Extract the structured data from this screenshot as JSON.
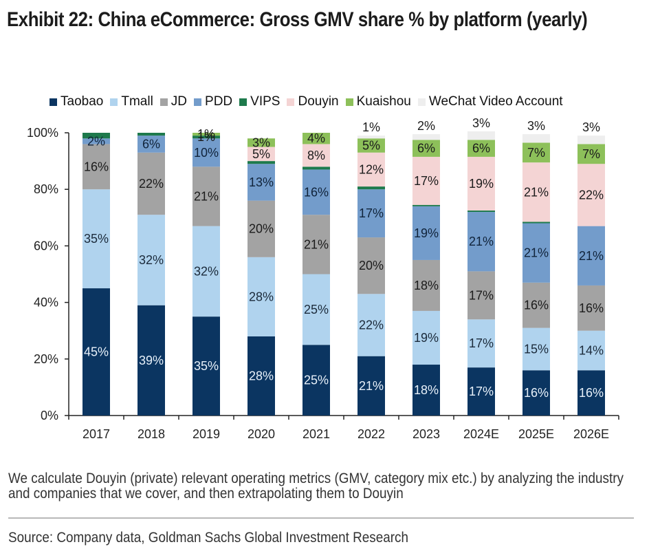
{
  "title": "Exhibit 22: China eCommerce: Gross GMV share % by platform (yearly)",
  "note": "We calculate Douyin (private) relevant operating metrics (GMV, category mix etc.) by analyzing the industry and companies that we cover, and then extrapolating them to Douyin",
  "source": "Source: Company data, Goldman Sachs Global Investment Research",
  "chart_data": {
    "type": "bar",
    "stacked": true,
    "title": "Exhibit 22: China eCommerce: Gross GMV share % by platform (yearly)",
    "xlabel": "",
    "ylabel": "",
    "ylim": [
      0,
      100
    ],
    "y_ticks": [
      "0%",
      "20%",
      "40%",
      "60%",
      "80%",
      "100%"
    ],
    "y_tick_values": [
      0,
      20,
      40,
      60,
      80,
      100
    ],
    "grid": false,
    "legend_position": "top",
    "categories": [
      "2017",
      "2018",
      "2019",
      "2020",
      "2021",
      "2022",
      "2023",
      "2024E",
      "2025E",
      "2026E"
    ],
    "series": [
      {
        "name": "Taobao",
        "color": "#0b3561",
        "label_color": "#e8f1fa",
        "values": [
          45,
          39,
          35,
          28,
          25,
          21,
          18,
          17,
          16,
          16
        ],
        "labels": [
          "45%",
          "39%",
          "35%",
          "28%",
          "25%",
          "21%",
          "18%",
          "17%",
          "16%",
          "16%"
        ]
      },
      {
        "name": "Tmall",
        "color": "#b0d3ee",
        "label_color": "#1b2a3a",
        "values": [
          35,
          32,
          32,
          28,
          25,
          22,
          19,
          17,
          15,
          14
        ],
        "labels": [
          "35%",
          "32%",
          "32%",
          "28%",
          "25%",
          "22%",
          "19%",
          "17%",
          "15%",
          "14%"
        ]
      },
      {
        "name": "JD",
        "color": "#a3a3a3",
        "label_color": "#1b1b1b",
        "values": [
          16,
          22,
          21,
          20,
          21,
          20,
          18,
          17,
          16,
          16
        ],
        "labels": [
          "16%",
          "22%",
          "21%",
          "20%",
          "21%",
          "20%",
          "18%",
          "17%",
          "16%",
          "16%"
        ]
      },
      {
        "name": "PDD",
        "color": "#739ccb",
        "label_color": "#10233a",
        "values": [
          2,
          6,
          10,
          13,
          16,
          17,
          19,
          21,
          21,
          21
        ],
        "labels": [
          "2%",
          "6%",
          "10%",
          "13%",
          "16%",
          "17%",
          "19%",
          "21%",
          "21%",
          "21%"
        ]
      },
      {
        "name": "VIPS",
        "color": "#1e7a4c",
        "label_color": "#1b1b1b",
        "values": [
          2,
          1,
          1,
          1,
          1,
          1,
          0.5,
          0.5,
          0.5,
          0
        ],
        "labels": [
          "",
          "",
          "1%",
          "",
          "",
          "",
          "",
          "",
          "",
          ""
        ]
      },
      {
        "name": "Douyin",
        "color": "#f4d4d4",
        "label_color": "#1b1b1b",
        "values": [
          0,
          0,
          0,
          5,
          8,
          12,
          17,
          19,
          21,
          22
        ],
        "labels": [
          "",
          "",
          "",
          "5%",
          "8%",
          "12%",
          "17%",
          "19%",
          "21%",
          "22%"
        ]
      },
      {
        "name": "Kuaishou",
        "color": "#8dc05a",
        "label_color": "#1b1b1b",
        "values": [
          0,
          0,
          1,
          3,
          4,
          5,
          6,
          6,
          7,
          7
        ],
        "labels": [
          "",
          "",
          "1%",
          "3%",
          "4%",
          "5%",
          "6%",
          "6%",
          "7%",
          "7%"
        ]
      },
      {
        "name": "WeChat Video Account",
        "color": "#eeeeee",
        "label_color": "#1b1b1b",
        "values": [
          0,
          0,
          0,
          0,
          0,
          1,
          2,
          3,
          3,
          3
        ],
        "labels": [
          "",
          "",
          "",
          "",
          "",
          "1%",
          "2%",
          "3%",
          "3%",
          "3%"
        ]
      }
    ]
  }
}
